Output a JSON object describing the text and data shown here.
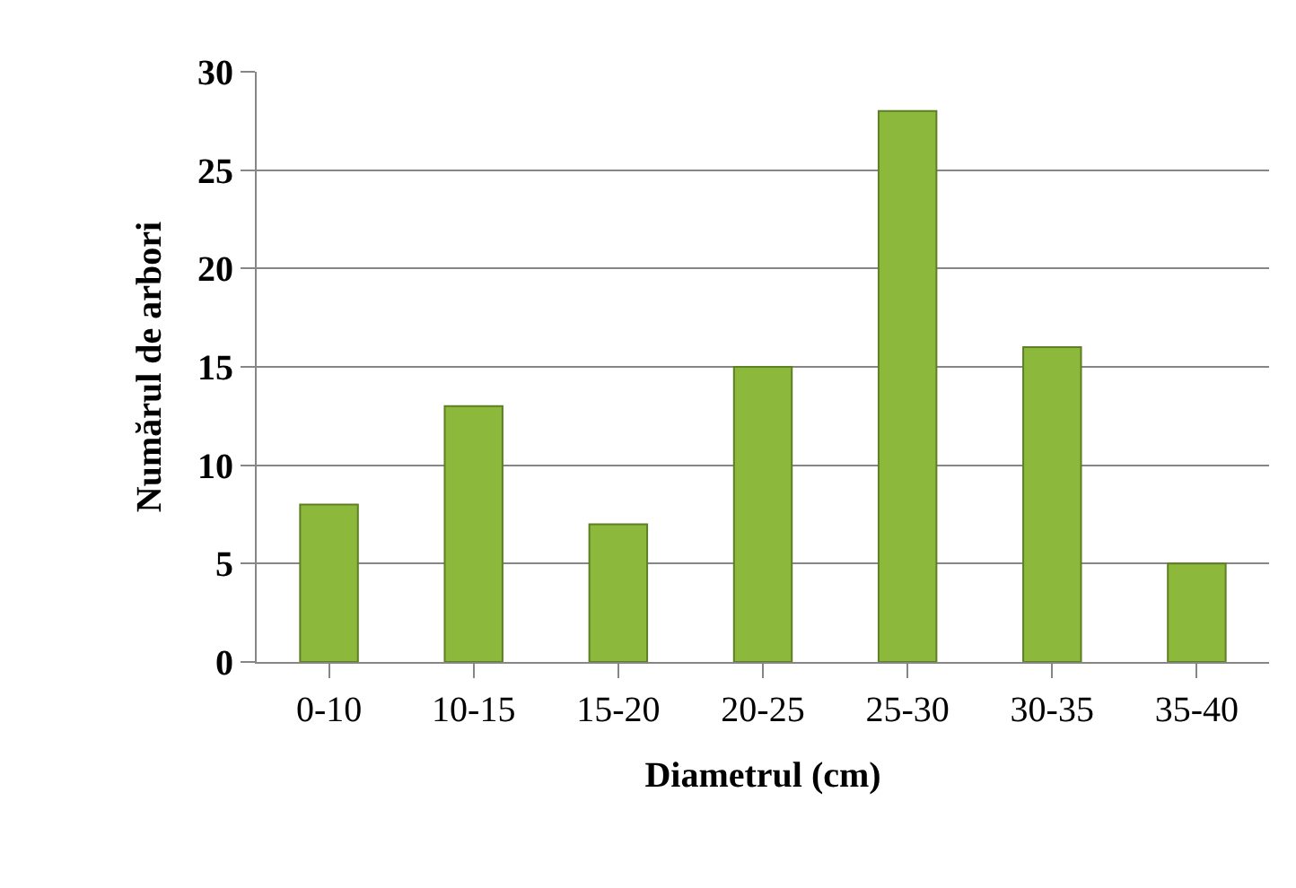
{
  "chart_data": {
    "type": "bar",
    "xlabel": "Diametrul (cm)",
    "ylabel": "Numărul de arbori",
    "categories": [
      "0-10",
      "10-15",
      "15-20",
      "20-25",
      "25-30",
      "30-35",
      "35-40"
    ],
    "values": [
      8,
      13,
      7,
      15,
      28,
      16,
      5
    ],
    "color": "#8cb83c",
    "ylim": [
      0,
      30
    ],
    "yticks": [
      0,
      5,
      10,
      15,
      20,
      25,
      30
    ],
    "grid": "y",
    "legend": false
  }
}
